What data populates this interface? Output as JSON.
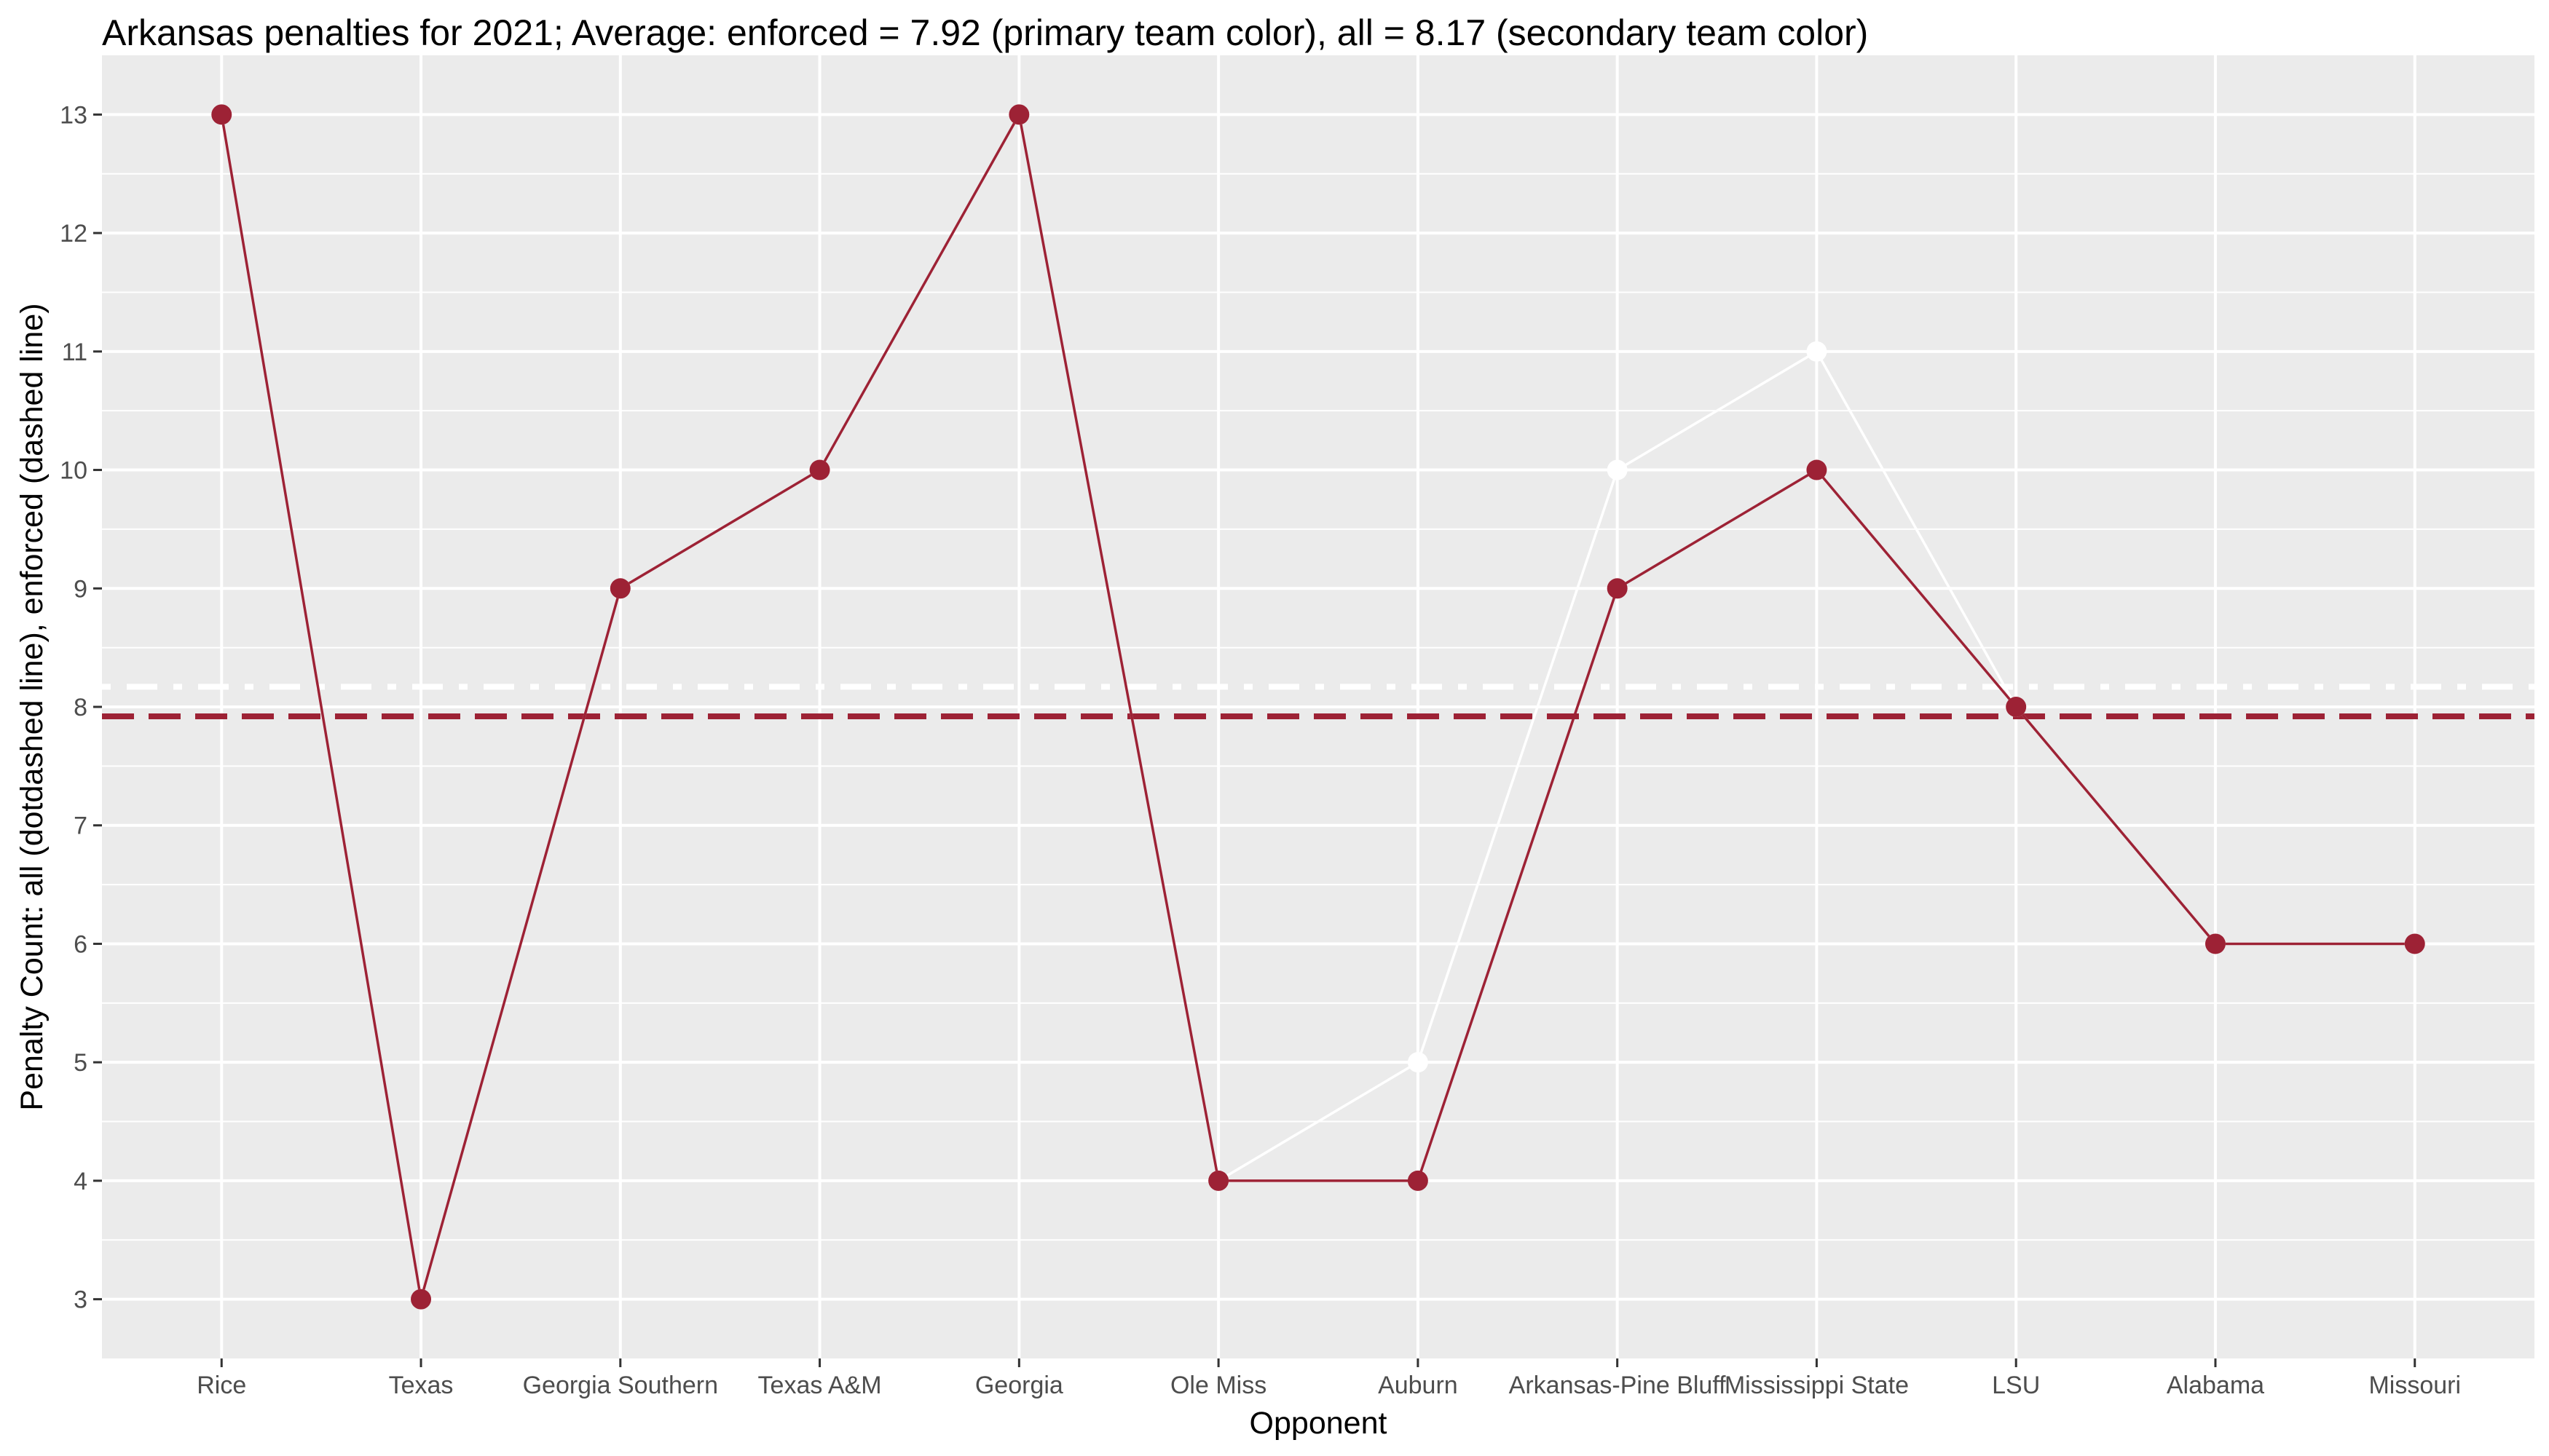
{
  "chart_data": {
    "type": "line",
    "title": "Arkansas penalties for 2021; Average: enforced = 7.92 (primary team color), all = 8.17 (secondary team color)",
    "xlabel": "Opponent",
    "ylabel": "Penalty Count: all (dotdashed line), enforced (dashed line)",
    "categories": [
      "Rice",
      "Texas",
      "Georgia Southern",
      "Texas A&M",
      "Georgia",
      "Ole Miss",
      "Auburn",
      "Arkansas-Pine Bluff",
      "Mississippi State",
      "LSU",
      "Alabama",
      "Missouri"
    ],
    "yticks": [
      3,
      4,
      5,
      6,
      7,
      8,
      9,
      10,
      11,
      12,
      13
    ],
    "ylim": [
      2.5,
      13.5
    ],
    "grid": true,
    "series": [
      {
        "name": "all",
        "color": "#ffffff",
        "values": [
          13,
          3,
          9,
          10,
          13,
          4,
          5,
          10,
          11,
          8,
          6,
          6
        ]
      },
      {
        "name": "enforced",
        "color": "#9d2235",
        "values": [
          13,
          3,
          9,
          10,
          13,
          4,
          4,
          9,
          10,
          8,
          6,
          6
        ]
      }
    ],
    "reference_lines": [
      {
        "name": "all average",
        "value": 8.17,
        "color": "#ffffff",
        "style": "dotdashed"
      },
      {
        "name": "enforced average",
        "value": 7.92,
        "color": "#9d2235",
        "style": "dashed"
      }
    ],
    "colors": {
      "panel_background": "#ebebeb",
      "grid": "#ffffff",
      "primary": "#9d2235",
      "secondary": "#ffffff"
    }
  }
}
